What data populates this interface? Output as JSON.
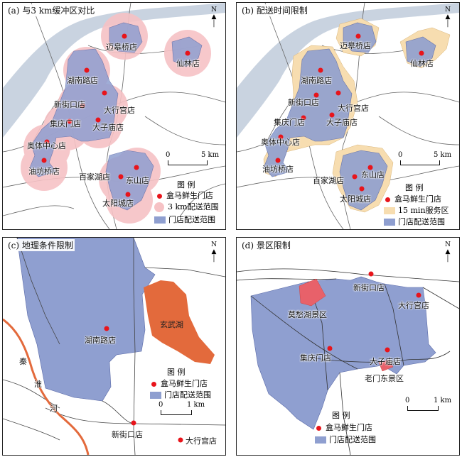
{
  "colors": {
    "store_dot": "#e8141b",
    "buffer_3km": "#f6c2c5",
    "delivery_range": "#8f9fd0",
    "service_15min": "#f7ddb0",
    "lake": "#e36a3c",
    "river": "#c9d3e0",
    "canal": "#e36a3c"
  },
  "panel_a": {
    "title": "(a) 与3 km缓冲区对比",
    "stores": [
      "迈皋桥店",
      "仙林店",
      "湖南路店",
      "新街口店",
      "大行宫店",
      "集庆门店",
      "大子庙店",
      "奥体中心店",
      "油坊桥店",
      "百家湖店",
      "东山店",
      "太阳城店"
    ],
    "legend_title": "图 例",
    "legend_items": [
      "盒马鲜生门店",
      "3 km配送范围",
      "门店配送范围"
    ],
    "scale_zero": "0",
    "scale_end": "5 km",
    "north": "N"
  },
  "panel_b": {
    "title": "(b) 配送时间限制",
    "stores": [
      "迈皋桥店",
      "仙林店",
      "湖南路店",
      "新街口店",
      "大行宫店",
      "集庆门店",
      "大子庙店",
      "奥体中心店",
      "油坊桥店",
      "百家湖店",
      "东山店",
      "太阳城店"
    ],
    "legend_title": "图 例",
    "legend_items": [
      "盒马鲜生门店",
      "15 min服务区",
      "门店配送范围"
    ],
    "scale_zero": "0",
    "scale_end": "5 km",
    "north": "N"
  },
  "panel_c": {
    "title": "(c) 地理条件限制",
    "stores": [
      "湖南路店",
      "新街口店",
      "大行宫店"
    ],
    "lake_label": "玄武湖",
    "river_chars": [
      "秦",
      "淮",
      "河"
    ],
    "legend_title": "图 例",
    "legend_items": [
      "盒马鲜生门店",
      "门店配送范围"
    ],
    "scale_zero": "0",
    "scale_end": "1 km",
    "north": "N"
  },
  "panel_d": {
    "title": "(d) 景区限制",
    "stores": [
      "新街口店",
      "大行宫店",
      "集庆门店",
      "大子庙店"
    ],
    "scenic": [
      "莫愁湖景区",
      "老门东景区"
    ],
    "legend_title": "图 例",
    "legend_items": [
      "盒马鲜生门店",
      "门店配送范围"
    ],
    "scale_zero": "0",
    "scale_end": "1 km",
    "north": "N"
  }
}
